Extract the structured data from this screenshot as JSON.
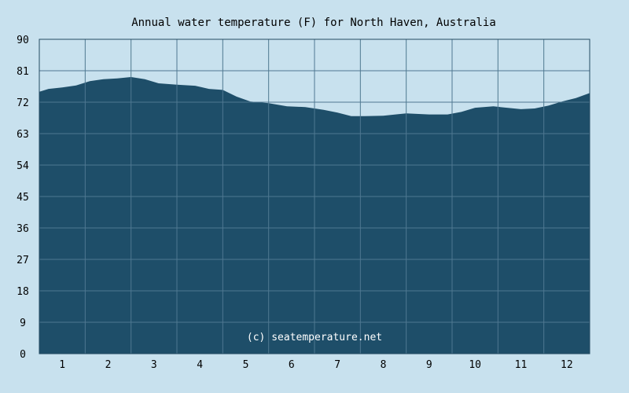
{
  "chart_data": {
    "type": "area",
    "title": "Annual water temperature (F) for North Haven, Australia",
    "xlabel": "",
    "ylabel": "",
    "x_ticks": [
      "1",
      "2",
      "3",
      "4",
      "5",
      "6",
      "7",
      "8",
      "9",
      "10",
      "11",
      "12"
    ],
    "y_ticks": [
      "0",
      "9",
      "18",
      "27",
      "36",
      "45",
      "54",
      "63",
      "72",
      "81",
      "90"
    ],
    "xlim": [
      0.5,
      12.5
    ],
    "ylim": [
      0,
      90
    ],
    "grid": true,
    "credit": "(c) seatemperature.net",
    "series": [
      {
        "x": [
          0.5,
          0.7,
          1.0,
          1.3,
          1.6,
          1.9,
          2.2,
          2.5,
          2.8,
          3.1,
          3.5,
          3.9,
          4.2,
          4.5,
          4.8,
          5.1,
          5.5,
          5.9,
          6.3,
          6.7,
          7.0,
          7.3,
          7.6,
          8.0,
          8.5,
          9.0,
          9.4,
          9.7,
          10.0,
          10.4,
          10.7,
          11.0,
          11.3,
          11.6,
          11.9,
          12.2,
          12.5
        ],
        "y": [
          75,
          75.8,
          76.2,
          76.8,
          78.0,
          78.6,
          78.8,
          79.2,
          78.6,
          77.4,
          77.0,
          76.7,
          75.8,
          75.5,
          73.6,
          72.2,
          71.7,
          70.8,
          70.6,
          69.8,
          69.0,
          68.0,
          68.0,
          68.1,
          68.8,
          68.5,
          68.5,
          69.2,
          70.4,
          70.8,
          70.4,
          70.0,
          70.2,
          71.0,
          72.2,
          73.2,
          74.6
        ]
      }
    ]
  },
  "colors": {
    "background": "#c8e1ee",
    "area_fill": "#1e4e69",
    "grid": "#4f7891",
    "axis": "#254a63"
  }
}
